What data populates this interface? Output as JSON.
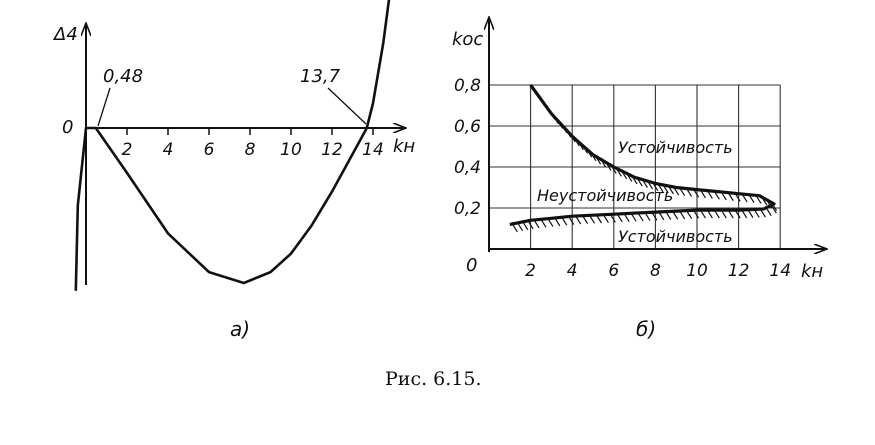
{
  "caption": "Рис. 6.15.",
  "chart_data": [
    {
      "id": "a",
      "type": "line",
      "panel_label": "а)",
      "ylabel": "Δ4",
      "xlabel": "kн",
      "origin_label": "0",
      "x_ticks": [
        "2",
        "4",
        "6",
        "8",
        "10",
        "12",
        "14"
      ],
      "annotations": [
        "0,48",
        "13,7"
      ],
      "roots": [
        0.48,
        13.7
      ],
      "min_point": [
        7.7,
        -1
      ],
      "series": [
        {
          "x": [
            -0.5,
            -0.4,
            0,
            0.48,
            2,
            4,
            6,
            7.7,
            9,
            10,
            11,
            12,
            13,
            13.7,
            14,
            14.5,
            15
          ],
          "y": [
            -1.05,
            -0.5,
            0,
            0,
            -0.29,
            -0.68,
            -0.93,
            -1.0,
            -0.93,
            -0.81,
            -0.63,
            -0.41,
            -0.17,
            0.0,
            0.16,
            0.55,
            1.05
          ]
        }
      ]
    },
    {
      "id": "b",
      "type": "line",
      "panel_label": "б)",
      "ylabel": "kос",
      "xlabel": "kн",
      "origin_label": "0",
      "x_ticks": [
        "2",
        "4",
        "6",
        "8",
        "10",
        "12",
        "14"
      ],
      "y_ticks": [
        "0,2",
        "0,4",
        "0,6",
        "0,8"
      ],
      "xlim": [
        0,
        14
      ],
      "ylim": [
        0,
        0.8
      ],
      "grid": true,
      "region_labels": [
        "Устойчивость",
        "Неустойчивость",
        "Устойчивость"
      ],
      "boundary": {
        "x": [
          2.0,
          3.0,
          4.0,
          5.0,
          6.0,
          7.0,
          8.0,
          9.0,
          10.0,
          11.0,
          12.0,
          13.0,
          13.7,
          13.2,
          12.0,
          11.0,
          10.0,
          9.0,
          8.0,
          7.0,
          6.0,
          5.0,
          4.0,
          3.0,
          2.0,
          1.0
        ],
        "y": [
          0.8,
          0.66,
          0.55,
          0.46,
          0.4,
          0.35,
          0.32,
          0.3,
          0.29,
          0.28,
          0.27,
          0.26,
          0.22,
          0.195,
          0.19,
          0.19,
          0.19,
          0.185,
          0.18,
          0.175,
          0.17,
          0.165,
          0.16,
          0.15,
          0.14,
          0.12
        ]
      }
    }
  ]
}
